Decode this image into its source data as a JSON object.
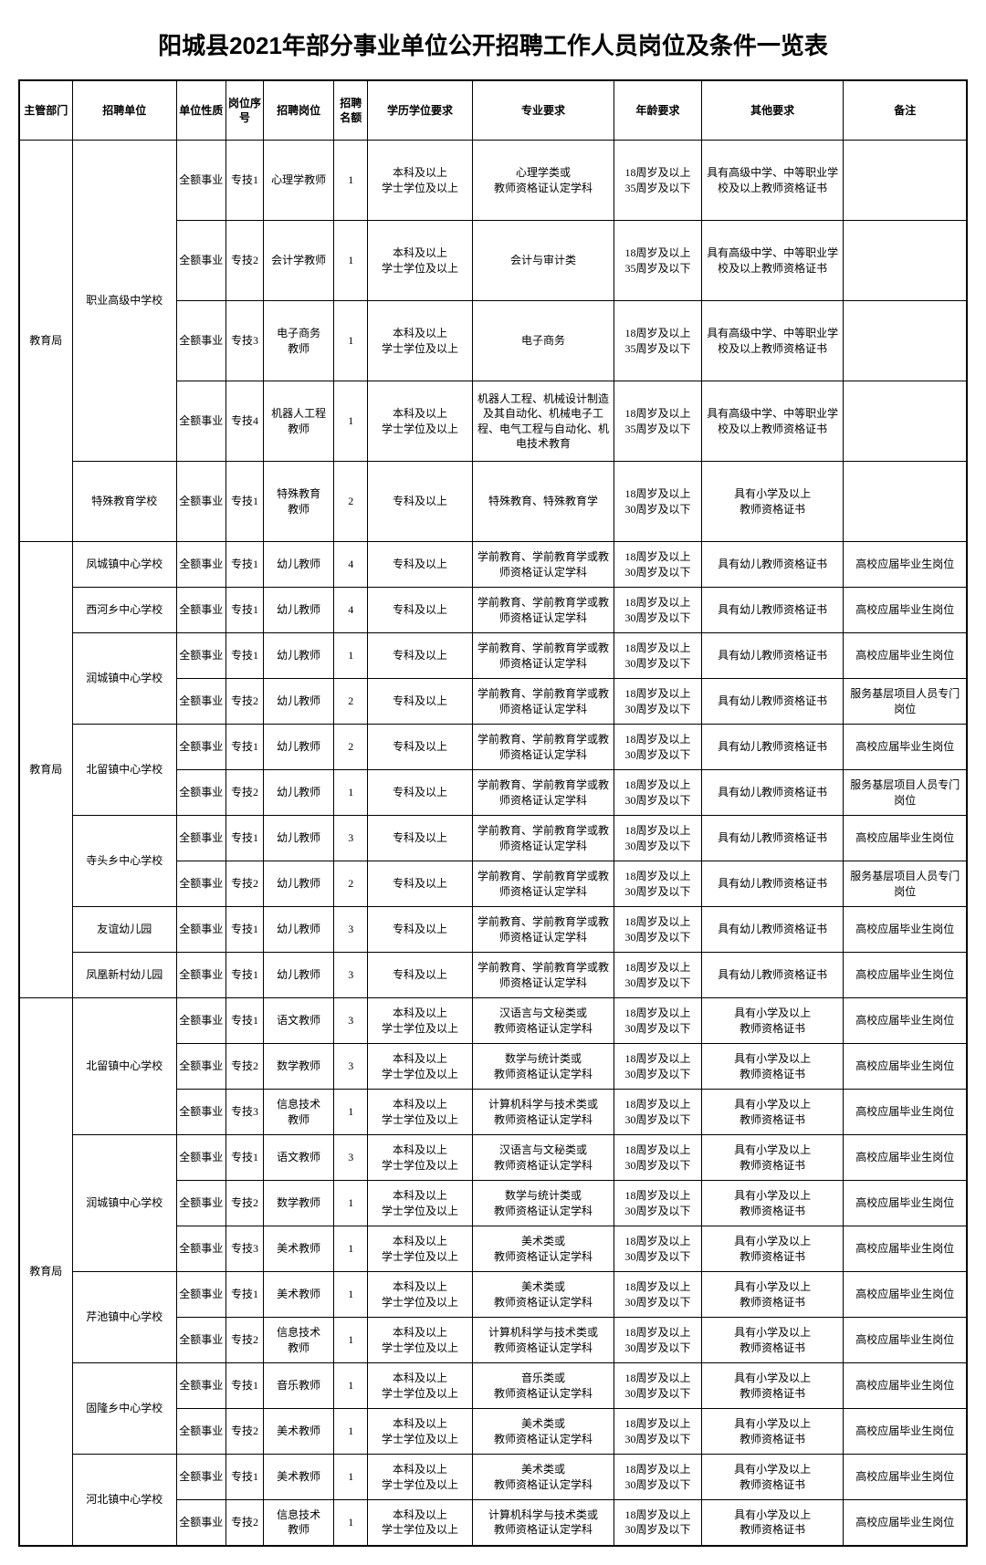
{
  "title": "阳城县2021年部分事业单位公开招聘工作人员岗位及条件一览表",
  "headers": {
    "dept": "主管部门",
    "unit": "招聘单位",
    "nature": "单位性质",
    "seq": "岗位序号",
    "post": "招聘岗位",
    "quota": "招聘名额",
    "edu": "学历学位要求",
    "major": "专业要求",
    "age": "年龄要求",
    "other": "其他要求",
    "note": "备注"
  },
  "common": {
    "dept": "教育局",
    "nature": "全额事业",
    "edu_bk": "本科及以上\n学士学位及以上",
    "edu_zk": "专科及以上",
    "age_35": "18周岁及以上\n35周岁及以下",
    "age_30": "18周岁及以上\n30周岁及以下",
    "cert_senior": "具有高级中学、中等职业学校及以上教师资格证书",
    "cert_primary": "具有小学及以上\n教师资格证书",
    "cert_youer": "具有幼儿教师资格证书",
    "note_gx": "高校应届毕业生岗位",
    "note_fw": "服务基层项目人员专门岗位",
    "major_youer": "学前教育、学前教育学或教师资格证认定学科"
  },
  "block1": {
    "unit1": "职业高级中学校",
    "unit2": "特殊教育学校",
    "r1": {
      "seq": "专技1",
      "post": "心理学教师",
      "quota": "1",
      "major": "心理学类或\n教师资格证认定学科"
    },
    "r2": {
      "seq": "专技2",
      "post": "会计学教师",
      "quota": "1",
      "major": "会计与审计类"
    },
    "r3": {
      "seq": "专技3",
      "post": "电子商务\n教师",
      "quota": "1",
      "major": "电子商务"
    },
    "r4": {
      "seq": "专技4",
      "post": "机器人工程\n教师",
      "quota": "1",
      "major": "机器人工程、机械设计制造及其自动化、机械电子工程、电气工程与自动化、机电技术教育"
    },
    "r5": {
      "seq": "专技1",
      "post": "特殊教育\n教师",
      "quota": "2",
      "major": "特殊教育、特殊教育学"
    }
  },
  "block2": {
    "u1": "凤城镇中心学校",
    "u2": "西河乡中心学校",
    "u3": "润城镇中心学校",
    "u4": "北留镇中心学校",
    "u5": "寺头乡中心学校",
    "u6": "友谊幼儿园",
    "u7": "凤凰新村幼儿园",
    "r1": {
      "seq": "专技1",
      "quota": "4"
    },
    "r2": {
      "seq": "专技1",
      "quota": "4"
    },
    "r3": {
      "seq": "专技1",
      "quota": "1"
    },
    "r4": {
      "seq": "专技2",
      "quota": "2"
    },
    "r5": {
      "seq": "专技1",
      "quota": "2"
    },
    "r6": {
      "seq": "专技2",
      "quota": "1"
    },
    "r7": {
      "seq": "专技1",
      "quota": "3"
    },
    "r8": {
      "seq": "专技2",
      "quota": "2"
    },
    "r9": {
      "seq": "专技1",
      "quota": "3"
    },
    "r10": {
      "seq": "专技1",
      "quota": "3"
    },
    "post": "幼儿教师"
  },
  "block3": {
    "u1": "北留镇中心学校",
    "u2": "润城镇中心学校",
    "u3": "芹池镇中心学校",
    "u4": "固隆乡中心学校",
    "u5": "河北镇中心学校",
    "r1": {
      "seq": "专技1",
      "post": "语文教师",
      "quota": "3",
      "major": "汉语言与文秘类或\n教师资格证认定学科"
    },
    "r2": {
      "seq": "专技2",
      "post": "数学教师",
      "quota": "3",
      "major": "数学与统计类或\n教师资格证认定学科"
    },
    "r3": {
      "seq": "专技3",
      "post": "信息技术\n教师",
      "quota": "1",
      "major": "计算机科学与技术类或\n教师资格证认定学科"
    },
    "r4": {
      "seq": "专技1",
      "post": "语文教师",
      "quota": "3",
      "major": "汉语言与文秘类或\n教师资格证认定学科"
    },
    "r5": {
      "seq": "专技2",
      "post": "数学教师",
      "quota": "1",
      "major": "数学与统计类或\n教师资格证认定学科"
    },
    "r6": {
      "seq": "专技3",
      "post": "美术教师",
      "quota": "1",
      "major": "美术类或\n教师资格证认定学科"
    },
    "r7": {
      "seq": "专技1",
      "post": "美术教师",
      "quota": "1",
      "major": "美术类或\n教师资格证认定学科"
    },
    "r8": {
      "seq": "专技2",
      "post": "信息技术\n教师",
      "quota": "1",
      "major": "计算机科学与技术类或\n教师资格证认定学科"
    },
    "r9": {
      "seq": "专技1",
      "post": "音乐教师",
      "quota": "1",
      "major": "音乐类或\n教师资格证认定学科"
    },
    "r10": {
      "seq": "专技2",
      "post": "美术教师",
      "quota": "1",
      "major": "美术类或\n教师资格证认定学科"
    },
    "r11": {
      "seq": "专技1",
      "post": "美术教师",
      "quota": "1",
      "major": "美术类或\n教师资格证认定学科"
    },
    "r12": {
      "seq": "专技2",
      "post": "信息技术\n教师",
      "quota": "1",
      "major": "计算机科学与技术类或\n教师资格证认定学科"
    }
  }
}
